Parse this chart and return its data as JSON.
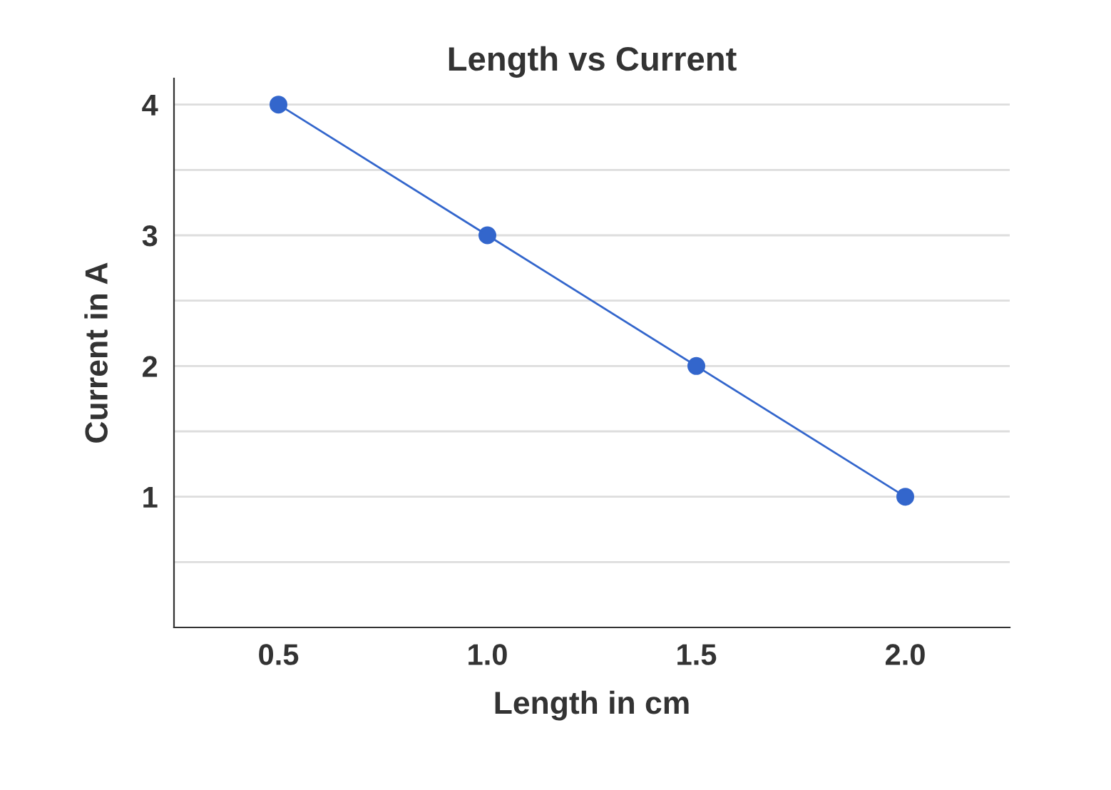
{
  "chart_data": {
    "type": "line",
    "title": "Length vs Current",
    "xlabel": "Length in cm",
    "ylabel": "Current in A",
    "categories": [
      "0.5",
      "1.0",
      "1.5",
      "2.0"
    ],
    "series": [
      {
        "color": "#3366cc",
        "values": [
          4,
          3,
          2,
          1
        ]
      }
    ],
    "ylim": [
      0,
      4.2
    ],
    "yticks": [
      {
        "value": 0.5,
        "label": null
      },
      1,
      {
        "value": 1.5,
        "label": null
      },
      2,
      {
        "value": 2.5,
        "label": null
      },
      3,
      {
        "value": 3.5,
        "label": null
      },
      4
    ],
    "grid": "y",
    "marker": "circle",
    "line_style": "solid",
    "legend": false
  }
}
